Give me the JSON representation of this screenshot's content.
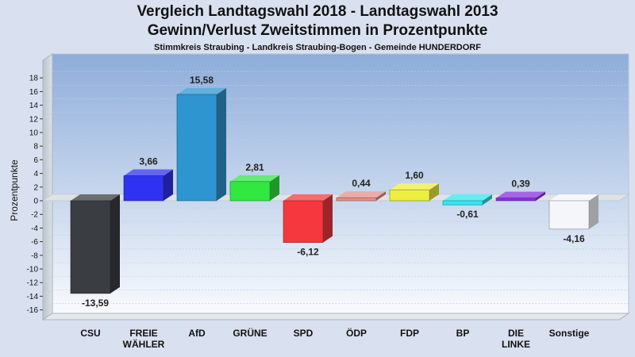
{
  "header": {
    "title_line1": "Vergleich Landtagswahl 2018 - Landtagswahl 2013",
    "title_line2": "Gewinn/Verlust Zweitstimmen in Prozentpunkte",
    "subtitle": "Stimmkreis Straubing - Landkreis Straubing-Bogen - Gemeinde HUNDERDORF"
  },
  "chart_data": {
    "type": "bar",
    "ylabel": "Prozentpunkte",
    "ylim": [
      -16,
      19
    ],
    "yticks": [
      18,
      16,
      14,
      12,
      10,
      8,
      6,
      4,
      2,
      0,
      -2,
      -4,
      -6,
      -8,
      -10,
      -12,
      -14,
      -16
    ],
    "grid": true,
    "categories": [
      [
        "CSU"
      ],
      [
        "FREIE",
        "WÄHLER"
      ],
      [
        "AfD"
      ],
      [
        "GRÜNE"
      ],
      [
        "SPD"
      ],
      [
        "ÖDP"
      ],
      [
        "FDP"
      ],
      [
        "BP"
      ],
      [
        "DIE",
        "LINKE"
      ],
      [
        "Sonstige"
      ]
    ],
    "values": [
      -13.59,
      3.66,
      15.58,
      2.81,
      -6.12,
      0.44,
      1.6,
      -0.61,
      0.39,
      -4.16
    ],
    "value_labels": [
      "-13,59",
      "3,66",
      "15,58",
      "2,81",
      "-6,12",
      "0,44",
      "1,60",
      "-0,61",
      "0,39",
      "-4,16"
    ],
    "colors": [
      "#3a3d42",
      "#2f32f0",
      "#2f95d0",
      "#30e840",
      "#f5383e",
      "#e69088",
      "#eeee40",
      "#30e8f0",
      "#8a30e0",
      "#f4f6fa"
    ]
  }
}
